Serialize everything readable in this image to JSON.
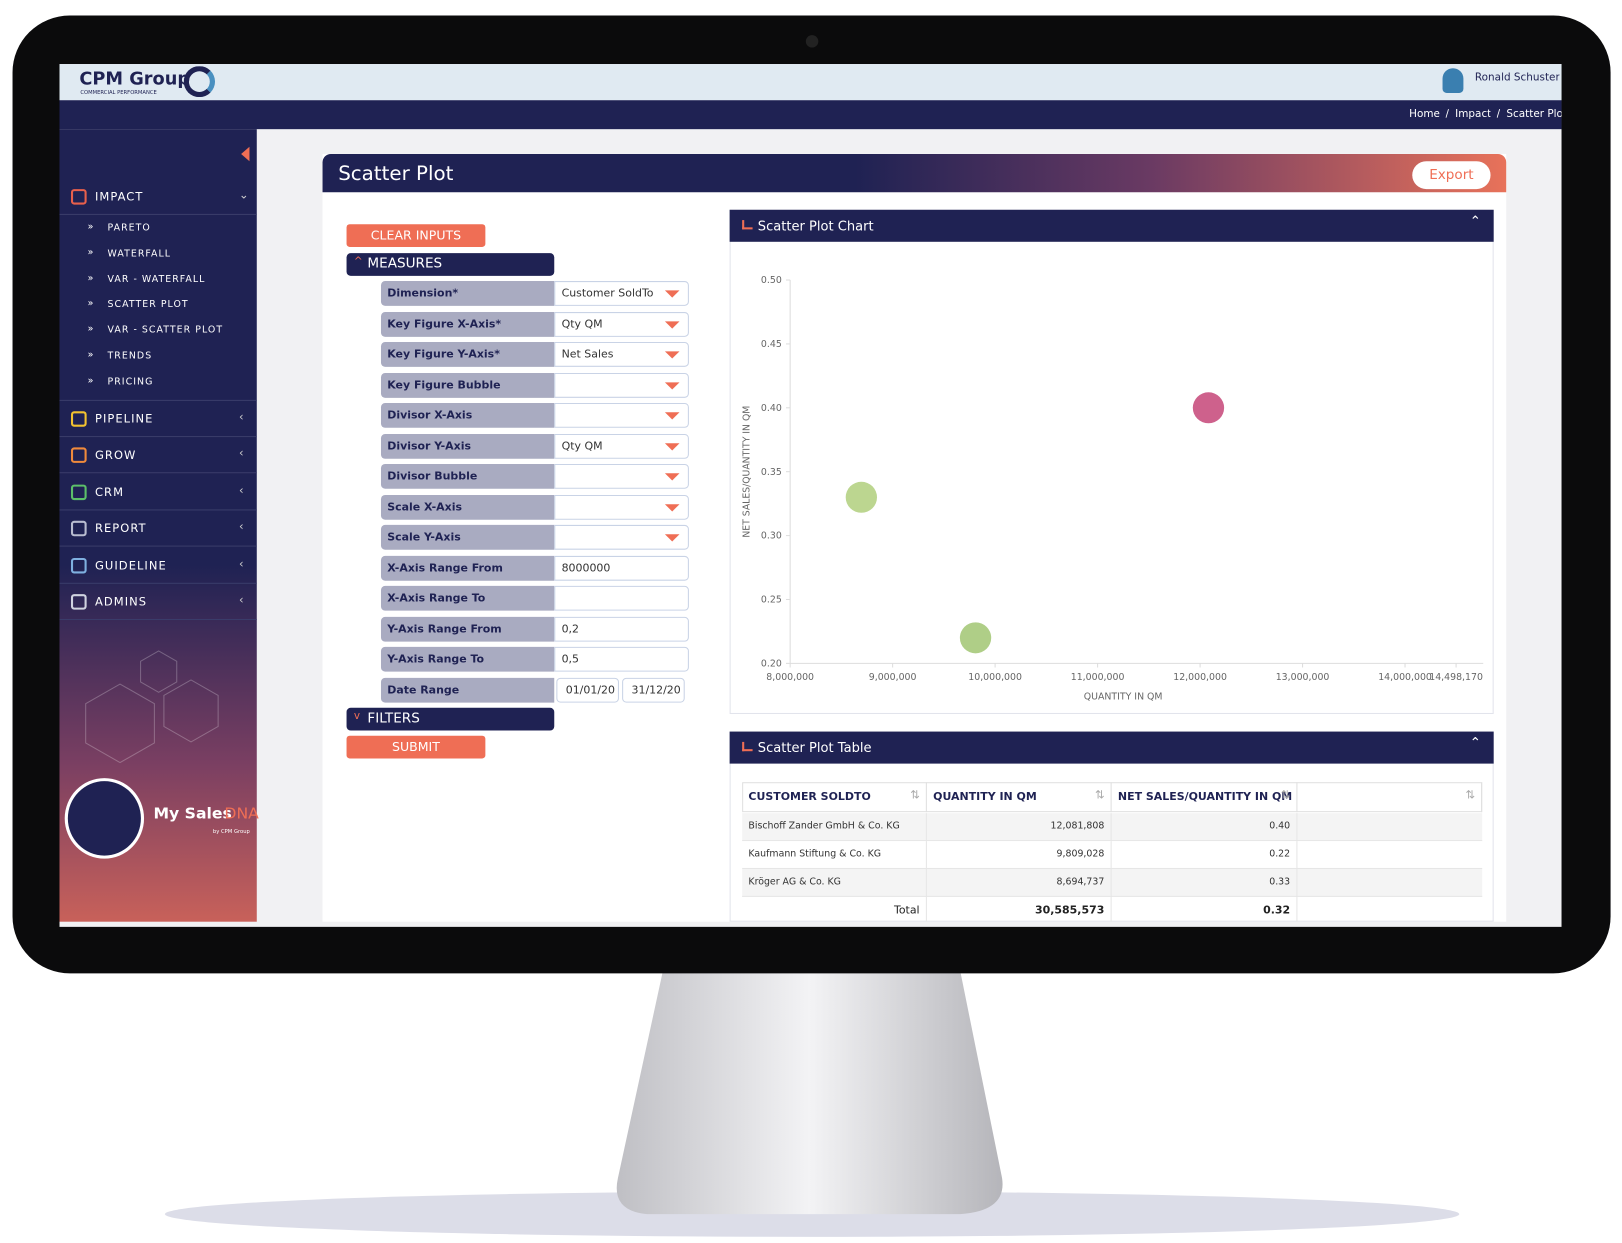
{
  "header": {
    "brand": "CPM Group",
    "tagline": "COMMERCIAL PERFORMANCE",
    "user": "Ronald Schuster"
  },
  "breadcrumb": [
    "Home",
    "Impact",
    "Scatter Plo"
  ],
  "sidebar": {
    "sections": [
      {
        "label": "IMPACT",
        "icon": "#e8604c",
        "items": [
          "PARETO",
          "WATERFALL",
          "VAR - WATERFALL",
          "SCATTER PLOT",
          "VAR - SCATTER PLOT",
          "TRENDS",
          "PRICING"
        ]
      },
      {
        "label": "PIPELINE",
        "icon": "#f2c230"
      },
      {
        "label": "GROW",
        "icon": "#f08a3c"
      },
      {
        "label": "CRM",
        "icon": "#5cc06a"
      },
      {
        "label": "REPORT",
        "icon": "#b8bcd0"
      },
      {
        "label": "GUIDELINE",
        "icon": "#7fb0e0"
      },
      {
        "label": "ADMINS",
        "icon": "#d0d3e0"
      }
    ],
    "logo": "My Sales",
    "logo_accent": "DNA",
    "logo_by": "by CPM Group"
  },
  "page": {
    "title": "Scatter Plot",
    "export": "Export"
  },
  "form": {
    "clear": "CLEAR INPUTS",
    "measures": "MEASURES",
    "fields": [
      {
        "label": "Dimension*",
        "value": "Customer SoldTo",
        "dropdown": true
      },
      {
        "label": "Key Figure X-Axis*",
        "value": "Qty QM",
        "dropdown": true
      },
      {
        "label": "Key Figure Y-Axis*",
        "value": "Net Sales",
        "dropdown": true
      },
      {
        "label": "Key Figure Bubble",
        "dropdown": true
      },
      {
        "label": "Divisor X-Axis",
        "dropdown": true
      },
      {
        "label": "Divisor Y-Axis",
        "value": "Qty QM",
        "dropdown": true
      },
      {
        "label": "Divisor Bubble",
        "dropdown": true
      },
      {
        "label": "Scale X-Axis",
        "dropdown": true
      },
      {
        "label": "Scale Y-Axis",
        "dropdown": true
      },
      {
        "label": "X-Axis Range From",
        "value": "8000000"
      },
      {
        "label": "X-Axis Range To"
      },
      {
        "label": "Y-Axis Range From",
        "value": "0,2"
      },
      {
        "label": "Y-Axis Range To",
        "value": "0,5"
      }
    ],
    "date_range": {
      "label": "Date Range",
      "from": "01/01/20",
      "to": "31/12/20"
    },
    "filters": "FILTERS",
    "submit": "SUBMIT"
  },
  "chart_panel": {
    "title": "Scatter Plot Chart"
  },
  "chart_data": {
    "type": "scatter",
    "x": [
      12081808,
      9809028,
      8694737
    ],
    "values": [
      0.4,
      0.22,
      0.33
    ],
    "colors": [
      "#c9507f",
      "#a6c97a",
      "#b5d184"
    ],
    "xlabel": "QUANTITY IN QM",
    "ylabel": "NET SALES/QUANTITY IN QM",
    "xlim": [
      8000000,
      14498170
    ],
    "xticks": [
      {
        "value": 8000000,
        "label": "8,000,000"
      },
      {
        "value": 9000000,
        "label": "9,000,000"
      },
      {
        "value": 10000000,
        "label": "10,000,000"
      },
      {
        "value": 11000000,
        "label": "11,000,000"
      },
      {
        "value": 12000000,
        "label": "12,000,000"
      },
      {
        "value": 13000000,
        "label": "13,000,000"
      },
      {
        "value": 14000000,
        "label": "14,000,000"
      },
      {
        "value": 14498170,
        "label": "14,498,170"
      }
    ],
    "ylim": [
      0.2,
      0.5
    ],
    "yticks": [
      {
        "value": 0.2,
        "label": "0.20"
      },
      {
        "value": 0.25,
        "label": "0.25"
      },
      {
        "value": 0.3,
        "label": "0.30"
      },
      {
        "value": 0.35,
        "label": "0.35"
      },
      {
        "value": 0.4,
        "label": "0.40"
      },
      {
        "value": 0.45,
        "label": "0.45"
      },
      {
        "value": 0.5,
        "label": "0.50"
      }
    ]
  },
  "table": {
    "title": "Scatter Plot Table",
    "columns": [
      "CUSTOMER SOLDTO",
      "QUANTITY IN QM",
      "NET SALES/QUANTITY IN QM"
    ],
    "rows": [
      [
        "Bischoff Zander GmbH & Co. KG",
        "12,081,808",
        "0.40"
      ],
      [
        "Kaufmann Stiftung & Co. KG",
        "9,809,028",
        "0.22"
      ],
      [
        "Kröger AG & Co. KG",
        "8,694,737",
        "0.33"
      ]
    ],
    "total": [
      "Total",
      "30,585,573",
      "0.32"
    ]
  }
}
